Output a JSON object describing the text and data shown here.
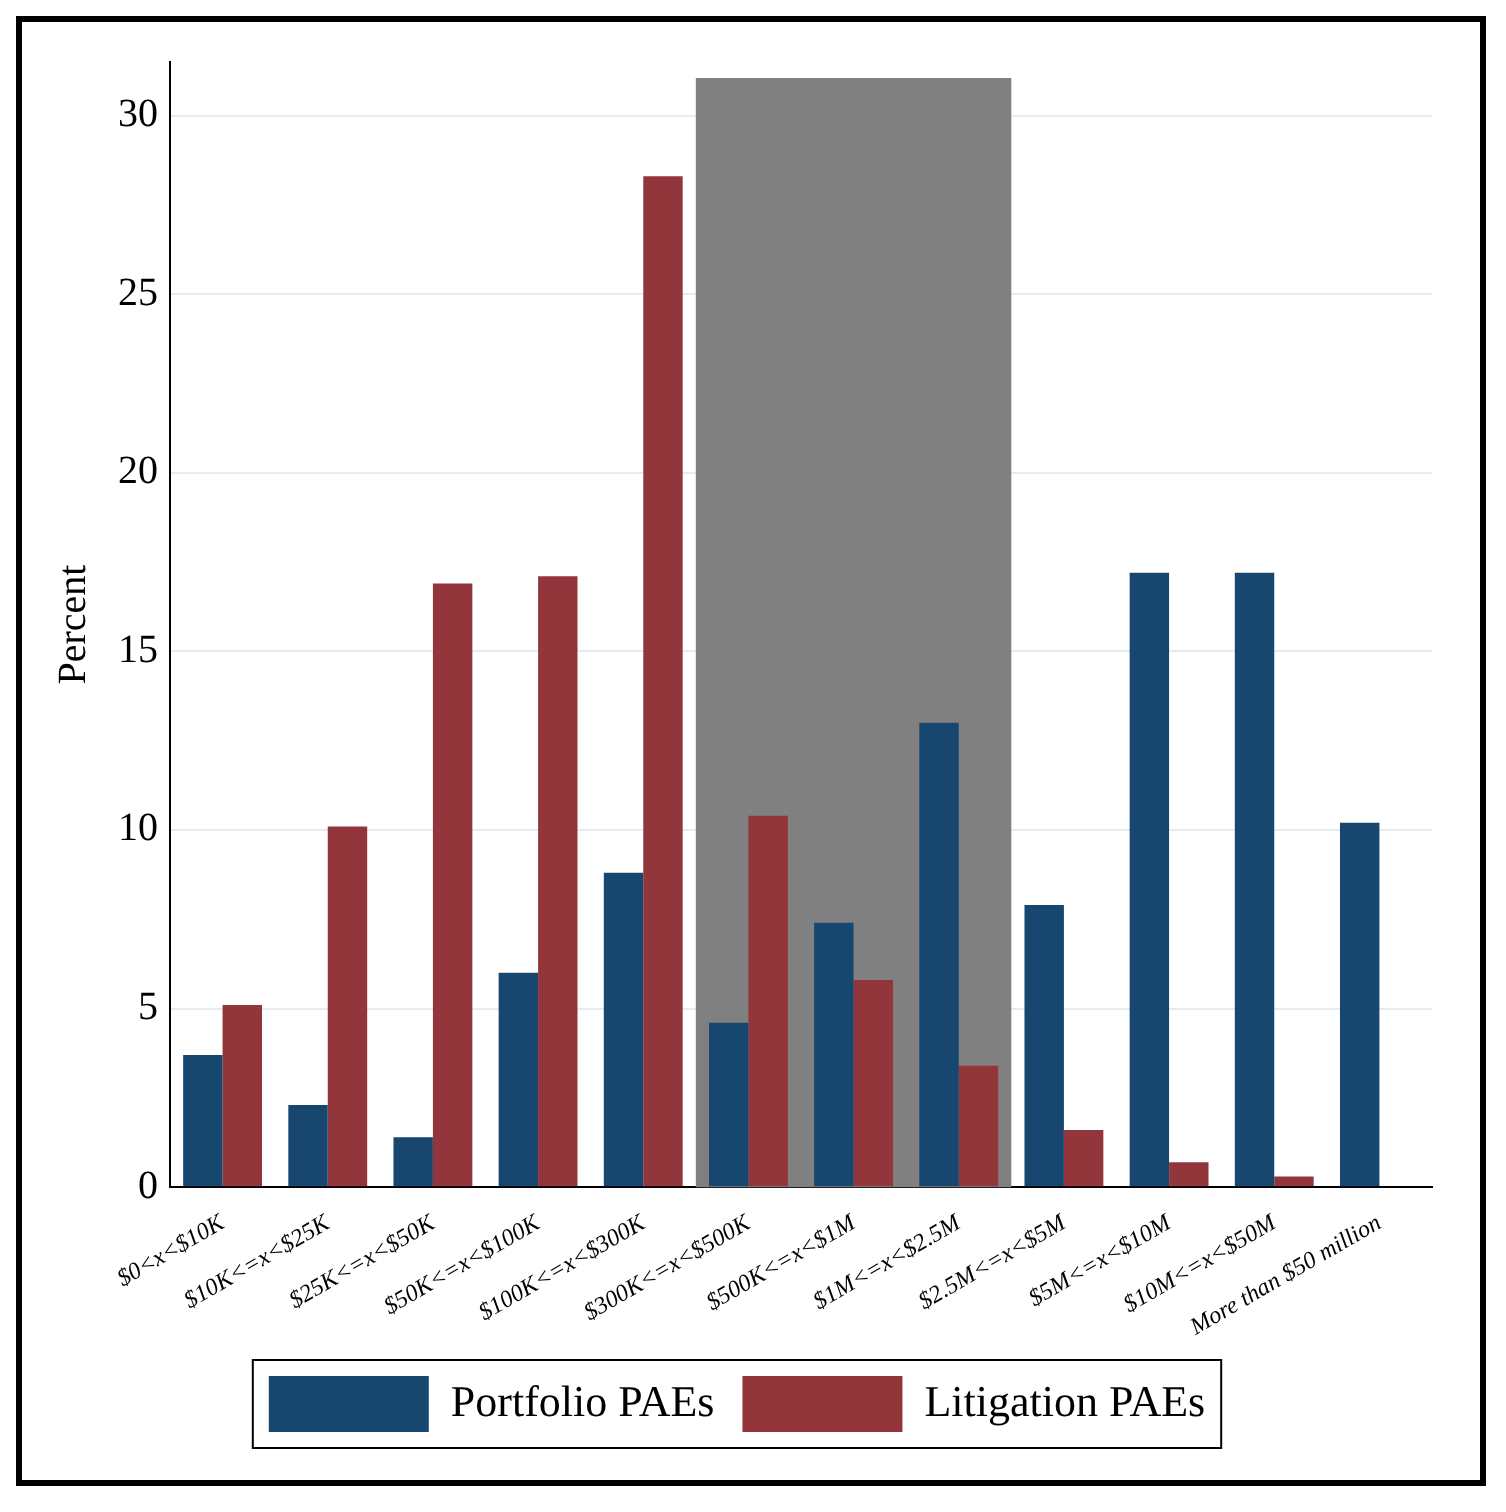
{
  "chart_data": {
    "type": "bar",
    "ylabel": "Percent",
    "categories": [
      "$0<x<$10K",
      "$10K<=x<$25K",
      "$25K<=x<$50K",
      "$50K<=x<$100K",
      "$100K<=x<$300K",
      "$300K<=x<$500K",
      "$500K<=x<$1M",
      "$1M<=x<$2.5M",
      "$2.5M<=x<$5M",
      "$5M<=x<$10M",
      "$10M<=x<$50M",
      "More than $50 million"
    ],
    "series": [
      {
        "name": "Portfolio PAEs",
        "color": "#17476f",
        "values": [
          3.7,
          2.3,
          1.4,
          6.0,
          8.8,
          4.6,
          7.4,
          13.0,
          7.9,
          17.2,
          17.2,
          10.2
        ]
      },
      {
        "name": "Litigation PAEs",
        "color": "#93363c",
        "values": [
          5.1,
          10.1,
          16.9,
          17.1,
          28.3,
          10.4,
          5.8,
          3.4,
          1.6,
          0.7,
          0.3,
          null
        ]
      }
    ],
    "ylim": [
      0,
      31.5
    ],
    "yticks": [
      0,
      5,
      10,
      15,
      20,
      25,
      30
    ],
    "bands": [
      {
        "axis": "x",
        "from": "$300K<=x<$500K",
        "to": "$1M<=x<$2.5M",
        "color": "#808080"
      }
    ],
    "grid": "y",
    "legend": "bottom"
  }
}
